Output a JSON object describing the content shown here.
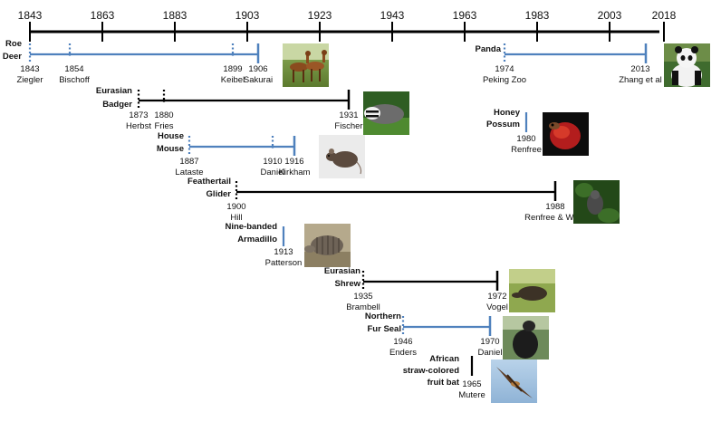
{
  "axis": {
    "years": [
      "1843",
      "1863",
      "1883",
      "1903",
      "1923",
      "1943",
      "1963",
      "1983",
      "2003",
      "2018"
    ]
  },
  "colors": {
    "blue": "#4f81bd",
    "black": "#000000"
  },
  "species": [
    {
      "id": "roe-deer",
      "name": [
        "Roe",
        "Deer"
      ],
      "color": "blue",
      "photo": "roe-deer-photo",
      "events": [
        {
          "year": "1843",
          "author": "Ziegler"
        },
        {
          "year": "1854",
          "author": "Bischoff"
        },
        {
          "year": "1899",
          "author": "Keibel"
        },
        {
          "year": "1906",
          "author": "Sakurai"
        }
      ]
    },
    {
      "id": "panda",
      "name": [
        "Panda"
      ],
      "color": "blue",
      "photo": "panda-photo",
      "events": [
        {
          "year": "1974",
          "author": "Peking Zoo"
        },
        {
          "year": "2013",
          "author": "Zhang et al"
        }
      ]
    },
    {
      "id": "eurasian-badger",
      "name": [
        "Eurasian",
        "Badger"
      ],
      "color": "black",
      "photo": "badger-photo",
      "events": [
        {
          "year": "1873",
          "author": "Herbst"
        },
        {
          "year": "1880",
          "author": "Fries"
        },
        {
          "year": "1931",
          "author": "Fischer"
        }
      ]
    },
    {
      "id": "honey-possum",
      "name": [
        "Honey",
        "Possum"
      ],
      "color": "blue",
      "photo": "honey-possum-photo",
      "events": [
        {
          "year": "1980",
          "author": "Renfree"
        }
      ]
    },
    {
      "id": "house-mouse",
      "name": [
        "House",
        "Mouse"
      ],
      "color": "blue",
      "photo": "mouse-photo",
      "events": [
        {
          "year": "1887",
          "author": "Lataste"
        },
        {
          "year": "1910",
          "author": "Daniel"
        },
        {
          "year": "1916",
          "author": "Kirkham"
        }
      ]
    },
    {
      "id": "feathertail-glider",
      "name": [
        "Feathertail",
        "Glider"
      ],
      "color": "black",
      "photo": "glider-photo",
      "events": [
        {
          "year": "1900",
          "author": "Hill"
        },
        {
          "year": "1988",
          "author": "Renfree & Ward"
        }
      ]
    },
    {
      "id": "nine-banded-armadillo",
      "name": [
        "Nine-banded",
        "Armadillo"
      ],
      "color": "blue",
      "photo": "armadillo-photo",
      "events": [
        {
          "year": "1913",
          "author": "Patterson"
        }
      ]
    },
    {
      "id": "eurasian-shrew",
      "name": [
        "Eurasian",
        "Shrew"
      ],
      "color": "black",
      "photo": "shrew-photo",
      "events": [
        {
          "year": "1935",
          "author": "Brambell"
        },
        {
          "year": "1972",
          "author": "Vogel"
        }
      ]
    },
    {
      "id": "northern-fur-seal",
      "name": [
        "Northern",
        "Fur Seal"
      ],
      "color": "blue",
      "photo": "fur-seal-photo",
      "events": [
        {
          "year": "1946",
          "author": "Enders"
        },
        {
          "year": "1970",
          "author": "Daniel"
        }
      ]
    },
    {
      "id": "african-fruit-bat",
      "name": [
        "African",
        "straw-colored",
        "fruit bat"
      ],
      "color": "black",
      "photo": "fruit-bat-photo",
      "events": [
        {
          "year": "1965",
          "author": "Mutere"
        }
      ]
    }
  ]
}
